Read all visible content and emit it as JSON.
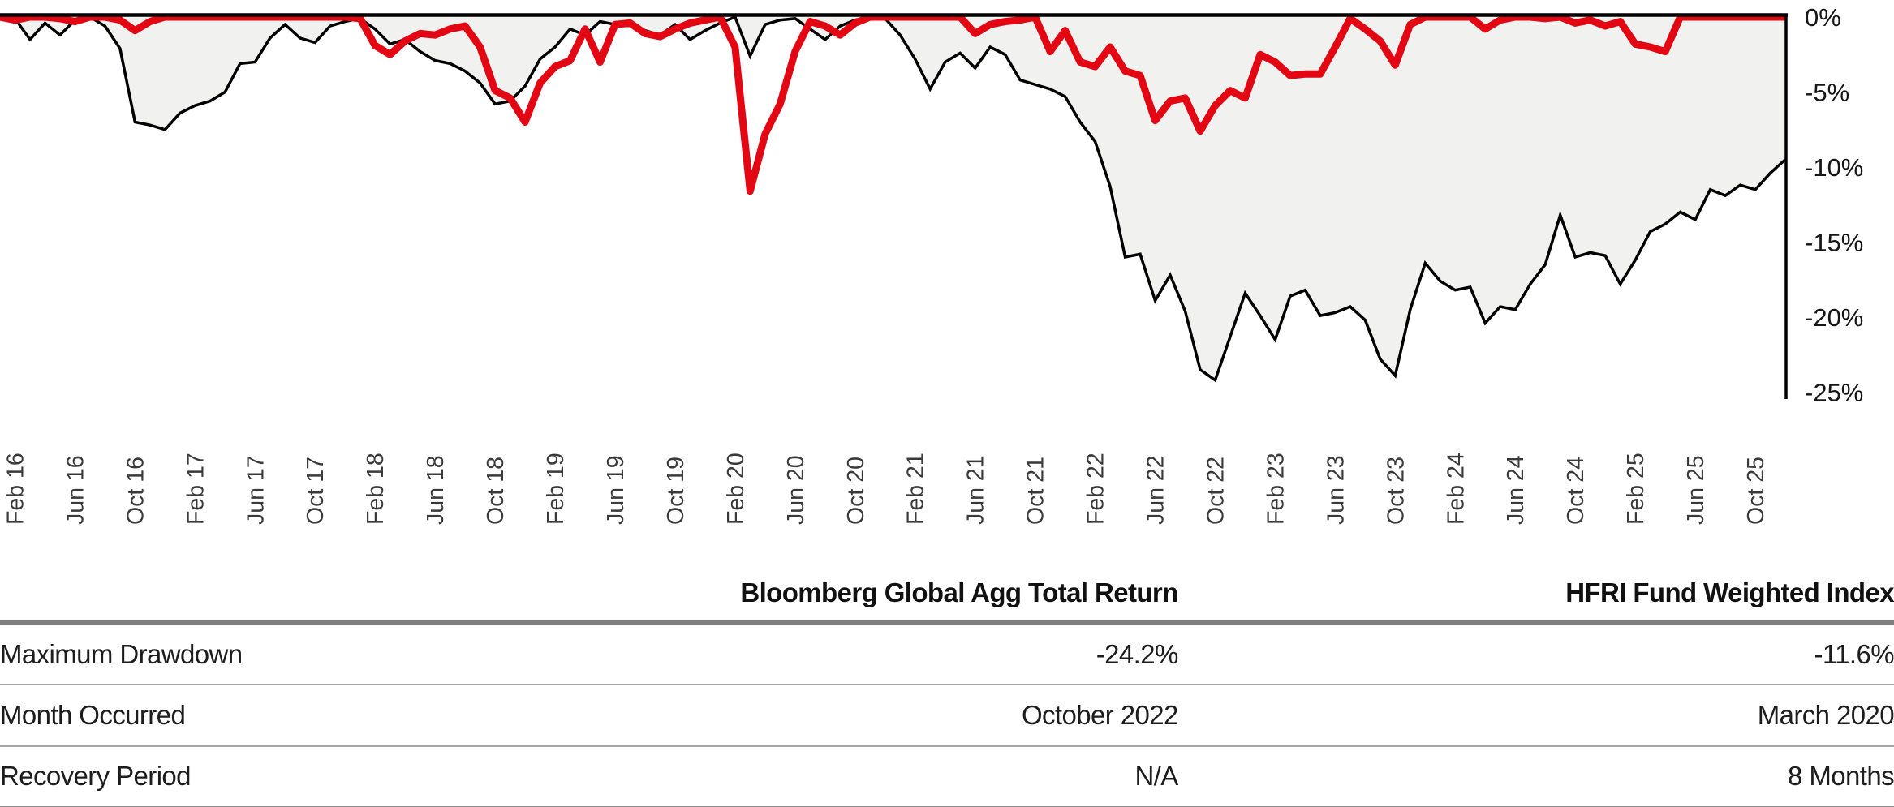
{
  "chart_data": {
    "type": "area",
    "subtype": "drawdown (underwater) chart, monthly data Jan 2016 - Dec 2025",
    "x_range": [
      "Jan 2016",
      "Dec 2025"
    ],
    "x_tick_labels": [
      "Feb 16",
      "Jun 16",
      "Oct 16",
      "Feb 17",
      "Jun 17",
      "Oct 17",
      "Feb 18",
      "Jun 18",
      "Oct 18",
      "Feb 19",
      "Jun 19",
      "Oct 19",
      "Feb 20",
      "Jun 20",
      "Oct 20",
      "Feb 21",
      "Jun 21",
      "Oct 21",
      "Feb 22",
      "Jun 22",
      "Oct 22",
      "Feb 23",
      "Jun 23",
      "Oct 23",
      "Feb 24",
      "Jun 24",
      "Oct 24",
      "Feb 25",
      "Jun 25",
      "Oct 25"
    ],
    "y_tick_labels": [
      "0%",
      "-5%",
      "-10%",
      "-15%",
      "-20%",
      "-25%"
    ],
    "ylim": [
      -25,
      0
    ],
    "grid": false,
    "legend_position": "none",
    "series": [
      {
        "name": "Bloomberg Global Agg Total Return",
        "style": "area",
        "line_color": "#000000",
        "fill_color": "#f1f1f0",
        "values": [
          0,
          -0.1,
          -1.5,
          -0.4,
          -1.2,
          -0.2,
          0,
          -0.6,
          -2.1,
          -7.0,
          -7.2,
          -7.5,
          -6.4,
          -5.9,
          -5.6,
          -5.0,
          -3.1,
          -3.0,
          -1.4,
          -0.5,
          -1.4,
          -1.7,
          -0.6,
          -0.3,
          -0.1,
          -0.8,
          -1.8,
          -1.5,
          -2.3,
          -2.9,
          -3.1,
          -3.6,
          -4.4,
          -5.8,
          -5.6,
          -4.6,
          -2.8,
          -2.0,
          -0.8,
          -1.2,
          -0.3,
          -0.5,
          -0.4,
          -0.9,
          -1.2,
          -0.5,
          -1.5,
          -0.9,
          -0.4,
          0,
          -2.6,
          -0.5,
          -0.2,
          -0.1,
          -0.8,
          -1.5,
          -0.6,
          -0.2,
          0,
          -0.1,
          -1.2,
          -2.8,
          -4.8,
          -3.0,
          -2.4,
          -3.4,
          -2.0,
          -2.5,
          -4.2,
          -4.5,
          -4.8,
          -5.3,
          -7.0,
          -8.3,
          -11.3,
          -16.0,
          -15.8,
          -18.9,
          -17.2,
          -19.6,
          -23.5,
          -24.2,
          -21.3,
          -18.4,
          -19.9,
          -21.5,
          -18.6,
          -18.2,
          -19.9,
          -19.7,
          -19.3,
          -20.2,
          -22.8,
          -23.9,
          -19.5,
          -16.4,
          -17.6,
          -18.2,
          -18.0,
          -20.4,
          -19.3,
          -19.5,
          -17.8,
          -16.5,
          -13.2,
          -16.0,
          -15.7,
          -15.9,
          -17.8,
          -16.2,
          -14.3,
          -13.8,
          -13.0,
          -13.5,
          -11.5,
          -11.9,
          -11.2,
          -11.5,
          -10.4,
          -9.5
        ]
      },
      {
        "name": "HFRI Fund Weighted Index",
        "style": "line",
        "line_color": "#e30613",
        "values": [
          0,
          -0.2,
          0,
          0,
          -0.1,
          -0.3,
          0,
          0,
          -0.2,
          -0.9,
          -0.3,
          0,
          0,
          0,
          0,
          0,
          0,
          0,
          0,
          0,
          0,
          0,
          0,
          0,
          -0.1,
          -1.9,
          -2.5,
          -1.6,
          -1.1,
          -1.2,
          -0.8,
          -0.6,
          -2.0,
          -4.9,
          -5.4,
          -7.0,
          -4.4,
          -3.3,
          -2.9,
          -0.8,
          -3.0,
          -0.5,
          -0.4,
          -1.1,
          -1.3,
          -0.8,
          -0.4,
          -0.2,
          0,
          -2.0,
          -11.6,
          -7.8,
          -5.8,
          -2.3,
          -0.3,
          -0.6,
          -1.2,
          -0.4,
          0,
          0,
          0,
          0,
          0,
          0,
          0,
          -1.1,
          -0.5,
          -0.3,
          -0.2,
          0,
          -2.3,
          -0.9,
          -3.0,
          -3.3,
          -2.0,
          -3.6,
          -3.9,
          -6.9,
          -5.6,
          -5.4,
          -7.6,
          -5.9,
          -4.9,
          -5.4,
          -2.5,
          -3.0,
          -3.9,
          -3.8,
          -3.8,
          -2.0,
          -0.1,
          -0.8,
          -1.6,
          -3.2,
          -0.5,
          0,
          0,
          0,
          0,
          -0.8,
          -0.2,
          0,
          0,
          -0.1,
          0,
          -0.4,
          -0.2,
          -0.6,
          -0.3,
          -1.8,
          -2.0,
          -2.3,
          0,
          0,
          0,
          0,
          0,
          0,
          0,
          0
        ]
      }
    ]
  },
  "table": {
    "columns": [
      "Bloomberg Global Agg Total Return",
      "HFRI Fund Weighted Index"
    ],
    "rows": [
      {
        "label": "Maximum Drawdown",
        "bloomberg": "-24.2%",
        "hfri": "-11.6%"
      },
      {
        "label": "Month Occurred",
        "bloomberg": "October 2022",
        "hfri": "March 2020"
      },
      {
        "label": "Recovery Period",
        "bloomberg": "N/A",
        "hfri": "8 Months"
      }
    ]
  }
}
